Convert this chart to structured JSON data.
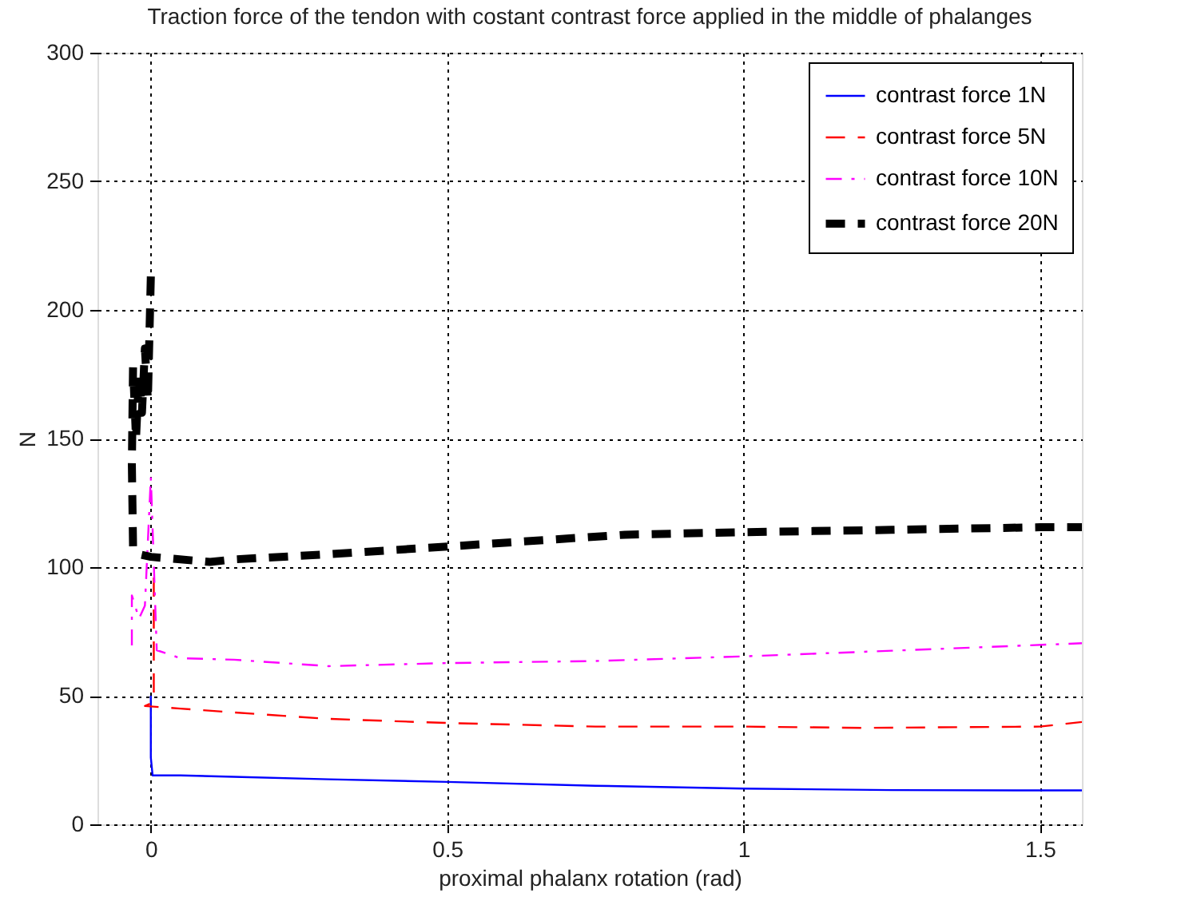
{
  "chart_data": {
    "type": "line",
    "title": "Traction force of the tendon  with costant contrast force applied in the middle of phalanges",
    "xlabel": "proximal phalanx rotation (rad)",
    "ylabel": "N",
    "xlim": [
      -0.09,
      1.5708
    ],
    "ylim": [
      0,
      300
    ],
    "xticks": [
      0,
      0.5,
      1,
      1.5
    ],
    "yticks": [
      0,
      50,
      100,
      150,
      200,
      250,
      300
    ],
    "grid": true,
    "legend": "top right",
    "series": [
      {
        "name": "contrast force 1N",
        "color": "#0000ff",
        "line_style": "solid",
        "x": [
          0,
          0,
          0.003,
          0.01,
          0.05,
          0.14,
          0.3,
          0.5,
          0.75,
          1,
          1.25,
          1.5,
          1.5708
        ],
        "values": [
          50,
          26,
          19,
          19,
          19,
          18.5,
          17.5,
          16.5,
          15,
          13.9,
          13.3,
          13.2,
          13.2
        ]
      },
      {
        "name": "contrast force 5N",
        "color": "#ff0000",
        "line_style": "dashed",
        "x": [
          0.005,
          0.005,
          0,
          -0.01,
          0.05,
          0.14,
          0.3,
          0.5,
          0.75,
          1,
          1.2,
          1.5,
          1.5708
        ],
        "values": [
          96,
          49,
          47,
          46,
          45,
          43.5,
          41,
          39.4,
          38,
          38,
          37.5,
          38,
          39.8
        ]
      },
      {
        "name": "contrast force 10N",
        "color": "#ff00ff",
        "line_style": "dashdot",
        "x": [
          -0.032,
          -0.032,
          -0.02,
          -0.01,
          0,
          0.01,
          0.05,
          0.14,
          0.3,
          0.5,
          0.75,
          1,
          1.25,
          1.5708
        ],
        "values": [
          69.6,
          89,
          80,
          85,
          135,
          67.7,
          64.6,
          64,
          61.5,
          62.7,
          63.5,
          65.3,
          67.5,
          70.4
        ]
      },
      {
        "name": "contrast force 20N",
        "color": "#000000",
        "line_style": "dashed_thick",
        "x": [
          0,
          -0.005,
          -0.01,
          -0.015,
          -0.02,
          -0.025,
          -0.03,
          -0.032,
          -0.03,
          -0.02,
          0,
          0.1,
          0.14,
          0.3,
          0.5,
          0.8,
          1,
          1.25,
          1.5,
          1.5708
        ],
        "values": [
          213,
          165,
          185,
          160,
          175,
          150,
          178,
          140,
          108,
          105,
          104,
          102,
          103,
          105,
          108,
          112.6,
          113.6,
          114.5,
          115.5,
          115.5
        ]
      }
    ]
  }
}
